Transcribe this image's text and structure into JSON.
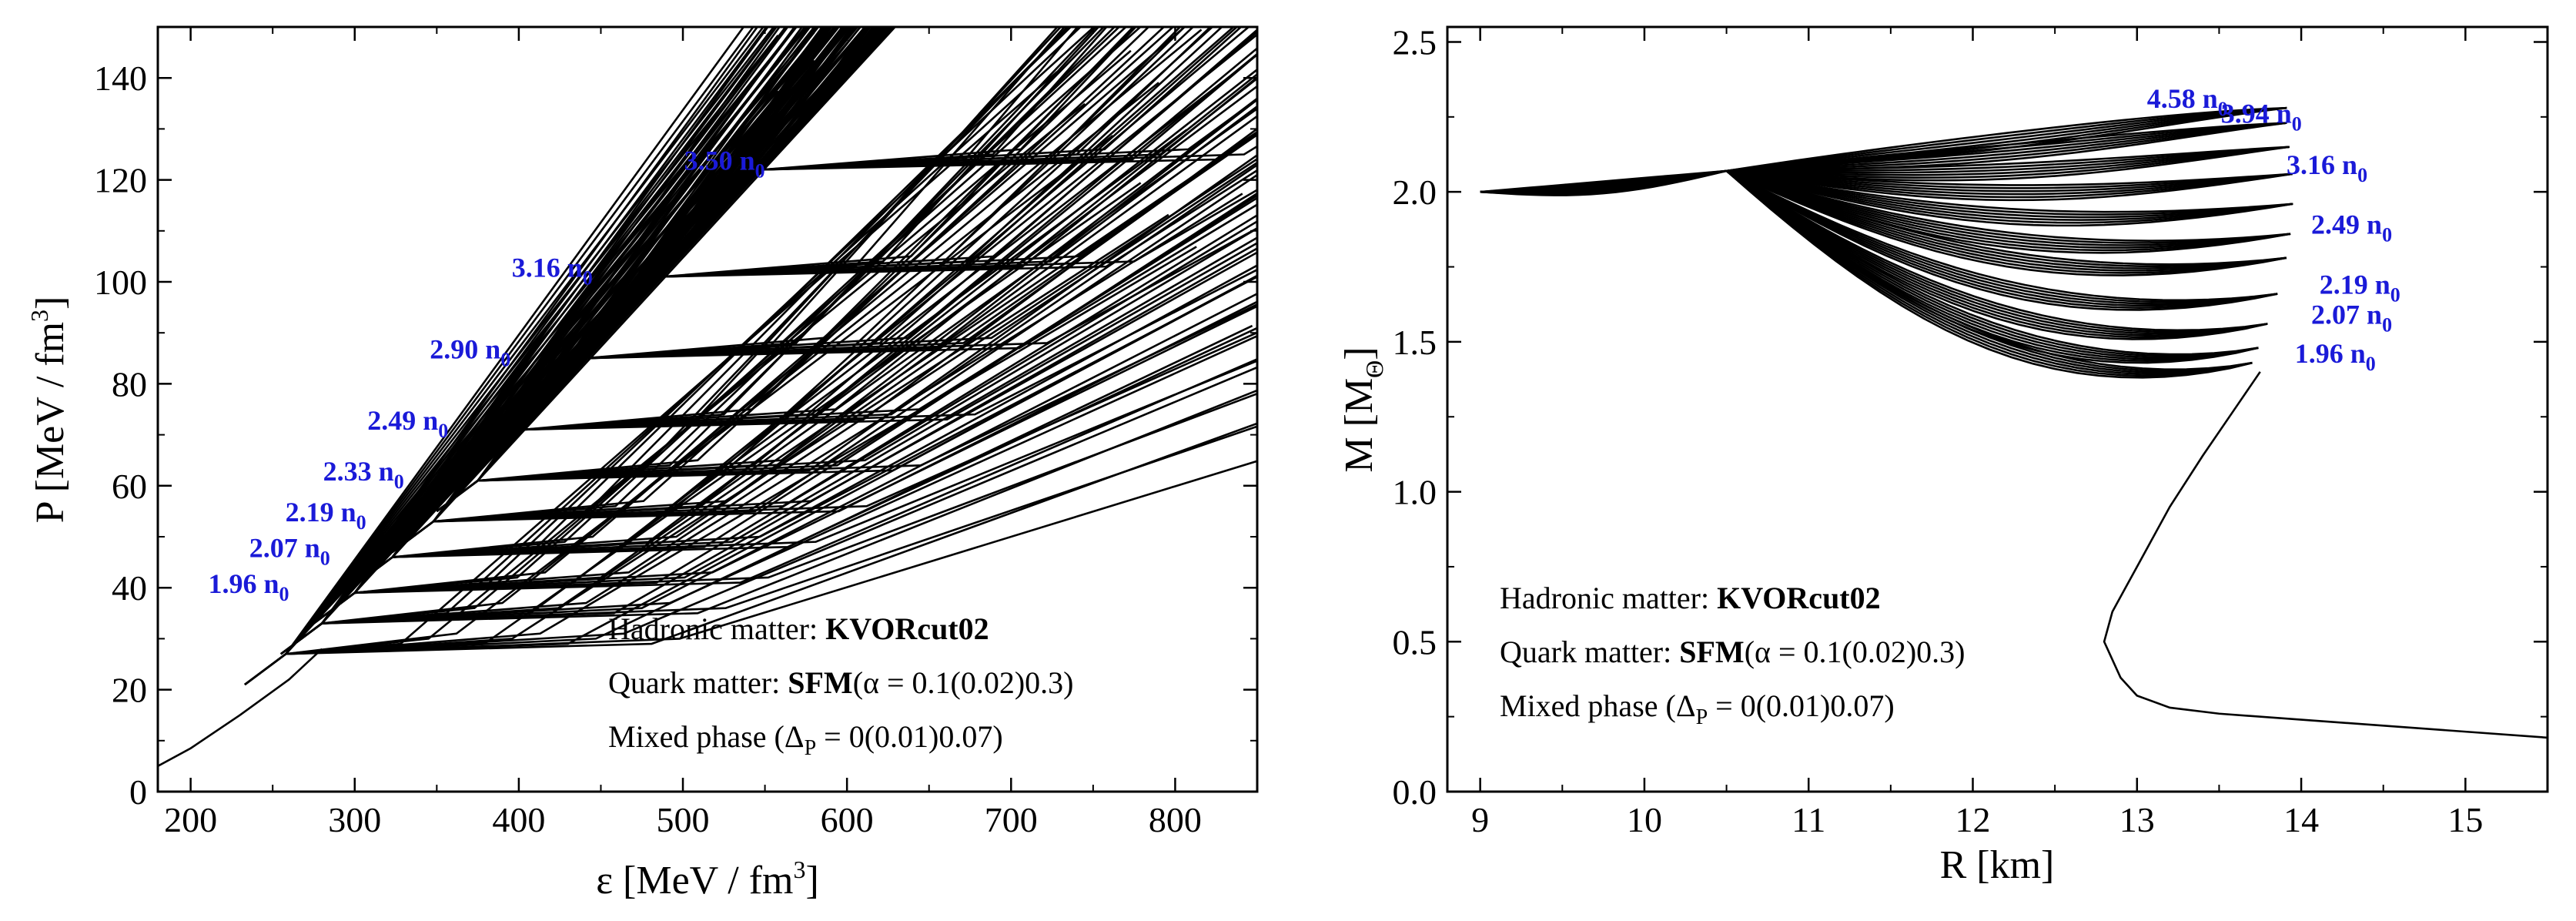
{
  "chart_data": [
    {
      "type": "line",
      "title": "",
      "xlabel": {
        "main": "ε [MeV / fm",
        "sup": "3",
        "close": "]"
      },
      "ylabel": {
        "main": "P [MeV / fm",
        "sup": "3",
        "close": "]"
      },
      "xlim": [
        180,
        850
      ],
      "ylim": [
        0,
        150
      ],
      "xticks": [
        "200",
        "300",
        "400",
        "500",
        "600",
        "700",
        "800"
      ],
      "yticks": [
        "0",
        "20",
        "40",
        "60",
        "80",
        "100",
        "120",
        "140"
      ],
      "onset_labels": [
        {
          "num": "1.96 n",
          "sub": "0",
          "x": 260,
          "y": 39
        },
        {
          "num": "2.07 n",
          "sub": "0",
          "x": 285,
          "y": 46
        },
        {
          "num": "2.19 n",
          "sub": "0",
          "x": 307,
          "y": 53
        },
        {
          "num": "2.33 n",
          "sub": "0",
          "x": 330,
          "y": 61
        },
        {
          "num": "2.49 n",
          "sub": "0",
          "x": 357,
          "y": 71
        },
        {
          "num": "2.90 n",
          "sub": "0",
          "x": 395,
          "y": 85
        },
        {
          "num": "3.16 n",
          "sub": "0",
          "x": 445,
          "y": 101
        },
        {
          "num": "3.50 n",
          "sub": "0",
          "x": 550,
          "y": 122
        }
      ],
      "hadronic_curve": {
        "x": [
          180,
          200,
          230,
          260,
          280
        ],
        "y": [
          5,
          8.5,
          15,
          22,
          28
        ]
      },
      "transition_onsets": [
        {
          "e": 258,
          "p": 27,
          "alpha_count": 11
        },
        {
          "e": 280,
          "p": 33,
          "alpha_count": 11
        },
        {
          "e": 300,
          "p": 39,
          "alpha_count": 11
        },
        {
          "e": 323,
          "p": 46,
          "alpha_count": 11
        },
        {
          "e": 348,
          "p": 53,
          "alpha_count": 11
        },
        {
          "e": 375,
          "p": 61,
          "alpha_count": 11
        },
        {
          "e": 402,
          "p": 71,
          "alpha_count": 11
        },
        {
          "e": 440,
          "p": 85,
          "alpha_count": 11
        },
        {
          "e": 487,
          "p": 101,
          "alpha_count": 11
        },
        {
          "e": 548,
          "p": 122,
          "alpha_count": 11
        }
      ],
      "annotations": [
        {
          "text": "Hadronic matter: ",
          "bold": "KVORcut02"
        },
        {
          "text": "Quark matter: ",
          "bold": "SFM",
          "rest": "(α = 0.1(0.02)0.3)"
        },
        {
          "text": "Mixed phase (Δ",
          "sub": "P",
          "rest": " = 0(0.01)0.07)"
        }
      ]
    },
    {
      "type": "line",
      "title": "",
      "xlabel": {
        "main": "R [km]"
      },
      "ylabel": {
        "main": "M [M",
        "sub": "Θ",
        "close": "]"
      },
      "xlim": [
        8.8,
        15.5
      ],
      "ylim": [
        0,
        2.55
      ],
      "xticks": [
        "9",
        "10",
        "11",
        "12",
        "13",
        "14",
        "15"
      ],
      "yticks": [
        "0.0",
        "0.5",
        "1.0",
        "1.5",
        "2.0",
        "2.5"
      ],
      "onset_labels": [
        {
          "num": "4.58 n",
          "sub": "0",
          "x": 12.85,
          "y": 2.28
        },
        {
          "num": "3.94 n",
          "sub": "0",
          "x": 13.3,
          "y": 2.23
        },
        {
          "num": "3.16 n",
          "sub": "0",
          "x": 13.7,
          "y": 2.06
        },
        {
          "num": "2.49 n",
          "sub": "0",
          "x": 13.85,
          "y": 1.86
        },
        {
          "num": "2.19 n",
          "sub": "0",
          "x": 13.9,
          "y": 1.66
        },
        {
          "num": "2.07 n",
          "sub": "0",
          "x": 13.85,
          "y": 1.56
        },
        {
          "num": "1.96 n",
          "sub": "0",
          "x": 13.75,
          "y": 1.43
        }
      ],
      "hadronic_branch": {
        "R": [
          15.5,
          15.0,
          14.5,
          14.0,
          13.5,
          13.2,
          13.0,
          12.9,
          12.8,
          12.85,
          13.0,
          13.2,
          13.4,
          13.6,
          13.75
        ],
        "M": [
          0.18,
          0.2,
          0.22,
          0.24,
          0.26,
          0.28,
          0.32,
          0.38,
          0.5,
          0.6,
          0.75,
          0.95,
          1.12,
          1.28,
          1.4
        ]
      },
      "annotations": [
        {
          "text": "Hadronic matter: ",
          "bold": "KVORcut02"
        },
        {
          "text": "Quark matter: ",
          "bold": "SFM",
          "rest": "(α = 0.1(0.02)0.3)"
        },
        {
          "text": "Mixed phase (Δ",
          "sub": "P",
          "rest": " = 0(0.01)0.07)"
        }
      ]
    }
  ]
}
